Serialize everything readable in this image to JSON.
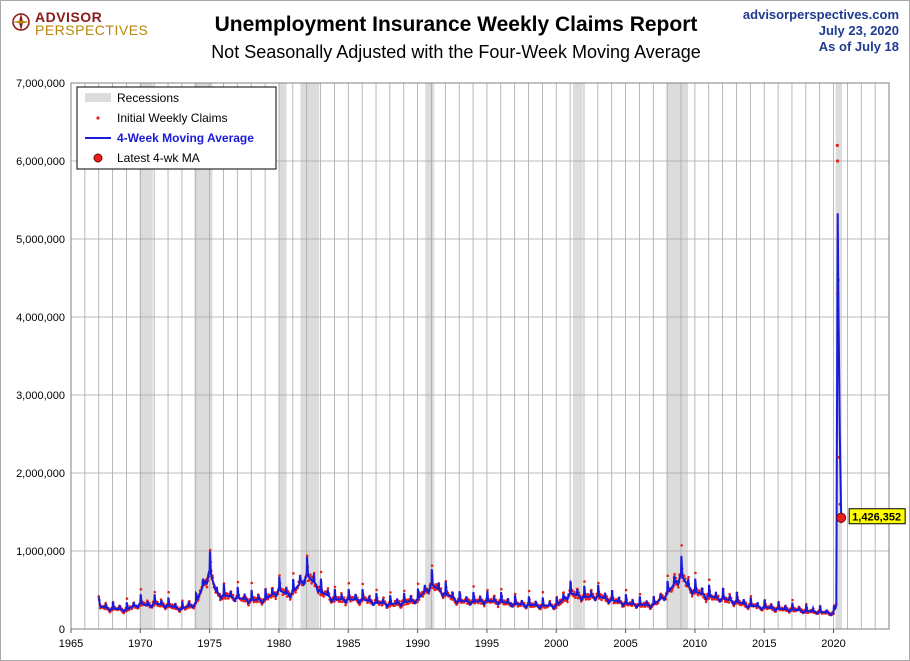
{
  "header": {
    "logo_line1": "ADVISOR",
    "logo_line2": "PERSPECTIVES",
    "site": "advisorperspectives.com",
    "date": "July 23, 2020",
    "as_of": "As of July 18"
  },
  "colors": {
    "recession": "#dcdcdc",
    "claims": "#e8201a",
    "moving_average": "#1a1adb",
    "latest_marker": "#e8201a",
    "callout_fill": "#ffff00",
    "grid": "#a8a8a8"
  },
  "chart_data": {
    "type": "line",
    "title": "Unemployment Insurance Weekly Claims Report",
    "subtitle": "Not Seasonally Adjusted with the Four-Week Moving Average",
    "xlim": [
      1965,
      2024
    ],
    "ylim": [
      0,
      7000000
    ],
    "x_ticks": [
      1965,
      1970,
      1975,
      1980,
      1985,
      1990,
      1995,
      2000,
      2005,
      2010,
      2015,
      2020
    ],
    "y_ticks": [
      0,
      1000000,
      2000000,
      3000000,
      4000000,
      5000000,
      6000000,
      7000000
    ],
    "y_tick_labels": [
      "0",
      "1,000,000",
      "2,000,000",
      "3,000,000",
      "4,000,000",
      "5,000,000",
      "6,000,000",
      "7,000,000"
    ],
    "grid": true,
    "legend_position": "top-left",
    "legend": {
      "recessions": "Recessions",
      "claims": "Initial Weekly Claims",
      "ma": "4-Week Moving Average",
      "latest": "Latest 4-wk MA"
    },
    "recessions": [
      [
        1969.95,
        1970.9
      ],
      [
        1973.9,
        1975.2
      ],
      [
        1980.0,
        1980.55
      ],
      [
        1981.55,
        1982.9
      ],
      [
        1990.55,
        1991.2
      ],
      [
        2001.2,
        2001.9
      ],
      [
        2007.95,
        2009.5
      ],
      [
        2020.15,
        2020.6
      ]
    ],
    "latest_ma": {
      "year": 2020.55,
      "value": 1426352,
      "label": "1,426,352"
    },
    "series": [
      {
        "name": "4-Week Moving Average",
        "x": [
          1967.0,
          1968.0,
          1969.0,
          1970.0,
          1970.5,
          1971.0,
          1972.0,
          1973.0,
          1974.0,
          1975.0,
          1975.5,
          1976.0,
          1977.0,
          1978.0,
          1979.0,
          1980.0,
          1980.5,
          1981.0,
          1982.0,
          1982.75,
          1983.0,
          1984.0,
          1985.0,
          1986.0,
          1987.0,
          1988.0,
          1989.0,
          1990.0,
          1991.0,
          1992.0,
          1993.0,
          1994.0,
          1995.0,
          1996.0,
          1997.0,
          1998.0,
          1999.0,
          2000.0,
          2001.0,
          2002.0,
          2003.0,
          2004.0,
          2005.0,
          2006.0,
          2007.0,
          2008.0,
          2009.0,
          2009.5,
          2010.0,
          2011.0,
          2012.0,
          2013.0,
          2014.0,
          2015.0,
          2016.0,
          2017.0,
          2018.0,
          2019.0,
          2020.0,
          2020.2,
          2020.3,
          2020.35,
          2020.45,
          2020.55
        ],
        "values": [
          290000,
          260000,
          250000,
          330000,
          300000,
          330000,
          300000,
          260000,
          330000,
          750000,
          460000,
          430000,
          400000,
          370000,
          380000,
          500000,
          450000,
          470000,
          690000,
          560000,
          480000,
          380000,
          380000,
          380000,
          340000,
          320000,
          340000,
          380000,
          570000,
          450000,
          360000,
          350000,
          360000,
          350000,
          320000,
          310000,
          300000,
          300000,
          460000,
          410000,
          420000,
          370000,
          330000,
          310000,
          310000,
          450000,
          700000,
          550000,
          480000,
          420000,
          390000,
          350000,
          300000,
          280000,
          260000,
          250000,
          230000,
          220000,
          200000,
          300000,
          5330000,
          4200000,
          2500000,
          1426352
        ]
      }
    ]
  }
}
